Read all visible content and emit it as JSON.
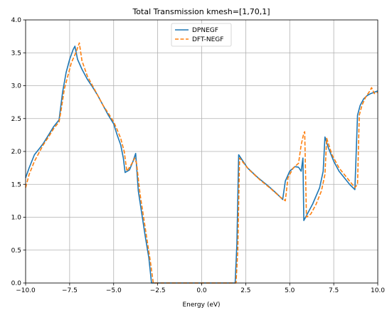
{
  "chart_data": {
    "type": "line",
    "title": "Total Transmission kmesh=[1,70,1]",
    "xlabel": "Energy (eV)",
    "ylabel": "",
    "xlim": [
      -10.0,
      10.0
    ],
    "ylim": [
      0.0,
      4.0
    ],
    "xticks": [
      "−10.0",
      "−7.5",
      "−5.0",
      "−2.5",
      "0.0",
      "2.5",
      "5.0",
      "7.5",
      "10.0"
    ],
    "yticks": [
      "0.0",
      "0.5",
      "1.0",
      "1.5",
      "2.0",
      "2.5",
      "3.0",
      "3.5",
      "4.0"
    ],
    "grid": true,
    "legend_position": "top-center",
    "series": [
      {
        "name": "DPNEGF",
        "color": "#1f77b4",
        "dash": "solid",
        "points": [
          [
            -10.0,
            1.6
          ],
          [
            -9.8,
            1.75
          ],
          [
            -9.5,
            1.95
          ],
          [
            -9.2,
            2.05
          ],
          [
            -9.0,
            2.12
          ],
          [
            -8.7,
            2.25
          ],
          [
            -8.4,
            2.38
          ],
          [
            -8.1,
            2.48
          ],
          [
            -7.9,
            2.9
          ],
          [
            -7.7,
            3.2
          ],
          [
            -7.5,
            3.4
          ],
          [
            -7.3,
            3.55
          ],
          [
            -7.2,
            3.6
          ],
          [
            -7.05,
            3.4
          ],
          [
            -6.8,
            3.25
          ],
          [
            -6.5,
            3.1
          ],
          [
            -6.2,
            2.98
          ],
          [
            -5.9,
            2.85
          ],
          [
            -5.6,
            2.7
          ],
          [
            -5.3,
            2.55
          ],
          [
            -5.0,
            2.42
          ],
          [
            -4.8,
            2.25
          ],
          [
            -4.6,
            2.1
          ],
          [
            -4.45,
            1.9
          ],
          [
            -4.35,
            1.68
          ],
          [
            -4.1,
            1.72
          ],
          [
            -3.9,
            1.85
          ],
          [
            -3.75,
            1.97
          ],
          [
            -3.6,
            1.4
          ],
          [
            -3.4,
            1.05
          ],
          [
            -3.2,
            0.7
          ],
          [
            -3.0,
            0.38
          ],
          [
            -2.85,
            0.0
          ],
          [
            1.9,
            0.0
          ],
          [
            2.0,
            0.6
          ],
          [
            2.1,
            1.95
          ],
          [
            2.6,
            1.75
          ],
          [
            3.2,
            1.6
          ],
          [
            3.8,
            1.47
          ],
          [
            4.3,
            1.35
          ],
          [
            4.6,
            1.27
          ],
          [
            4.75,
            1.55
          ],
          [
            5.0,
            1.7
          ],
          [
            5.3,
            1.77
          ],
          [
            5.5,
            1.76
          ],
          [
            5.65,
            1.7
          ],
          [
            5.75,
            1.9
          ],
          [
            5.8,
            0.95
          ],
          [
            6.0,
            1.05
          ],
          [
            6.3,
            1.2
          ],
          [
            6.7,
            1.45
          ],
          [
            6.9,
            1.7
          ],
          [
            7.0,
            2.22
          ],
          [
            7.2,
            2.05
          ],
          [
            7.5,
            1.85
          ],
          [
            7.8,
            1.7
          ],
          [
            8.1,
            1.6
          ],
          [
            8.4,
            1.5
          ],
          [
            8.7,
            1.42
          ],
          [
            8.85,
            2.55
          ],
          [
            9.0,
            2.7
          ],
          [
            9.2,
            2.8
          ],
          [
            9.4,
            2.85
          ],
          [
            9.6,
            2.88
          ],
          [
            9.8,
            2.9
          ],
          [
            10.0,
            2.92
          ]
        ]
      },
      {
        "name": "DFT-NEGF",
        "color": "#ff7f0e",
        "dash": "dashed",
        "points": [
          [
            -10.0,
            1.45
          ],
          [
            -9.8,
            1.65
          ],
          [
            -9.5,
            1.85
          ],
          [
            -9.2,
            2.0
          ],
          [
            -9.0,
            2.1
          ],
          [
            -8.7,
            2.22
          ],
          [
            -8.4,
            2.35
          ],
          [
            -8.1,
            2.45
          ],
          [
            -8.0,
            2.6
          ],
          [
            -7.8,
            2.95
          ],
          [
            -7.6,
            3.15
          ],
          [
            -7.4,
            3.35
          ],
          [
            -7.15,
            3.5
          ],
          [
            -6.95,
            3.65
          ],
          [
            -6.8,
            3.38
          ],
          [
            -6.5,
            3.15
          ],
          [
            -6.2,
            3.0
          ],
          [
            -5.9,
            2.85
          ],
          [
            -5.6,
            2.7
          ],
          [
            -5.3,
            2.58
          ],
          [
            -5.0,
            2.45
          ],
          [
            -4.8,
            2.33
          ],
          [
            -4.6,
            2.2
          ],
          [
            -4.4,
            2.0
          ],
          [
            -4.25,
            1.7
          ],
          [
            -4.0,
            1.8
          ],
          [
            -3.8,
            1.9
          ],
          [
            -3.7,
            1.82
          ],
          [
            -3.5,
            1.35
          ],
          [
            -3.3,
            1.0
          ],
          [
            -3.1,
            0.65
          ],
          [
            -2.9,
            0.3
          ],
          [
            -2.75,
            0.0
          ],
          [
            1.95,
            0.0
          ],
          [
            2.05,
            0.5
          ],
          [
            2.15,
            1.9
          ],
          [
            2.7,
            1.72
          ],
          [
            3.3,
            1.57
          ],
          [
            3.9,
            1.44
          ],
          [
            4.4,
            1.32
          ],
          [
            4.75,
            1.25
          ],
          [
            4.9,
            1.6
          ],
          [
            5.2,
            1.75
          ],
          [
            5.5,
            1.82
          ],
          [
            5.65,
            2.1
          ],
          [
            5.8,
            2.28
          ],
          [
            5.85,
            2.3
          ],
          [
            5.95,
            1.0
          ],
          [
            6.2,
            1.05
          ],
          [
            6.5,
            1.2
          ],
          [
            6.8,
            1.4
          ],
          [
            7.0,
            1.65
          ],
          [
            7.1,
            2.2
          ],
          [
            7.4,
            1.95
          ],
          [
            7.8,
            1.75
          ],
          [
            8.1,
            1.65
          ],
          [
            8.4,
            1.55
          ],
          [
            8.7,
            1.45
          ],
          [
            8.85,
            1.5
          ],
          [
            8.95,
            2.55
          ],
          [
            9.1,
            2.7
          ],
          [
            9.3,
            2.82
          ],
          [
            9.5,
            2.9
          ],
          [
            9.65,
            2.97
          ],
          [
            9.8,
            2.88
          ],
          [
            10.0,
            2.9
          ]
        ]
      }
    ]
  }
}
